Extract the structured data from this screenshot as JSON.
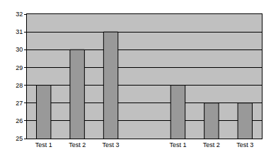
{
  "chart_data": {
    "type": "bar",
    "categories": [
      "Test 1",
      "Test 2",
      "Test 3",
      null,
      "Test 1",
      "Test 2",
      "Test 3"
    ],
    "values": [
      28,
      30,
      31,
      null,
      28,
      27,
      27
    ],
    "color": "#999999",
    "ylim": [
      25,
      32
    ],
    "yticks": [
      25,
      26,
      27,
      28,
      29,
      30,
      31,
      32
    ],
    "grid": true
  }
}
